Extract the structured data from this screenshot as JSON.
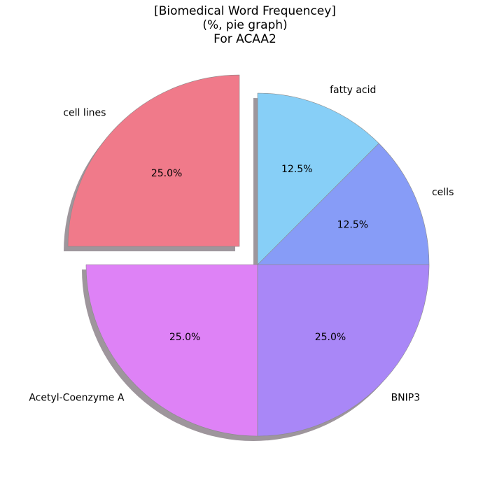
{
  "chart_data": {
    "type": "pie",
    "title_lines": [
      "[Biomedical Word Frequencey]",
      "(%, pie graph)",
      "For ACAA2"
    ],
    "slices": [
      {
        "label": "cells",
        "value": 12.5,
        "pct_label": "12.5%",
        "color": "#879cf7",
        "exploded": false
      },
      {
        "label": "fatty acid",
        "value": 12.5,
        "pct_label": "12.5%",
        "color": "#87cff7",
        "exploded": false
      },
      {
        "label": "cell lines",
        "value": 25.0,
        "pct_label": "25.0%",
        "color": "#f07a8a",
        "exploded": true
      },
      {
        "label": "Acetyl-Coenzyme A",
        "value": 25.0,
        "pct_label": "25.0%",
        "color": "#de82f6",
        "exploded": false
      },
      {
        "label": "BNIP3",
        "value": 25.0,
        "pct_label": "25.0%",
        "color": "#a987f7",
        "exploded": false
      }
    ],
    "start_angle_deg": 0,
    "direction": "counterclockwise",
    "shadow": true,
    "shadow_color": "#9e969c",
    "edge_color": "#8a8a8a"
  }
}
